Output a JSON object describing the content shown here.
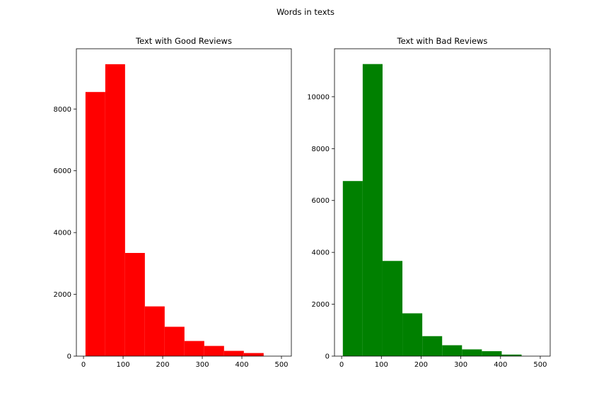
{
  "figure": {
    "suptitle": "Words in texts"
  },
  "chart_data": [
    {
      "type": "bar",
      "title": "Text with Good Reviews",
      "color": "#ff0000",
      "xlabel": "",
      "ylabel": "",
      "xlim": [
        -18,
        525
      ],
      "ylim": [
        0,
        9950
      ],
      "xticks": [
        0,
        100,
        200,
        300,
        400,
        500
      ],
      "yticks": [
        0,
        2000,
        4000,
        6000,
        8000
      ],
      "bin_edges": [
        5,
        55,
        105,
        155,
        205,
        255,
        305,
        355,
        405,
        455,
        505
      ],
      "values": [
        8550,
        9450,
        3340,
        1610,
        950,
        490,
        330,
        170,
        100,
        0
      ],
      "grid": false
    },
    {
      "type": "bar",
      "title": "Text with Bad Reviews",
      "color": "#008000",
      "xlabel": "",
      "ylabel": "",
      "xlim": [
        -18,
        525
      ],
      "ylim": [
        0,
        11850
      ],
      "xticks": [
        0,
        100,
        200,
        300,
        400,
        500
      ],
      "yticks": [
        0,
        2000,
        4000,
        6000,
        8000,
        10000
      ],
      "bin_edges": [
        3,
        53,
        103,
        153,
        203,
        253,
        303,
        353,
        403,
        453,
        503
      ],
      "values": [
        6750,
        11260,
        3670,
        1650,
        770,
        420,
        260,
        190,
        60,
        0
      ],
      "grid": false
    }
  ]
}
